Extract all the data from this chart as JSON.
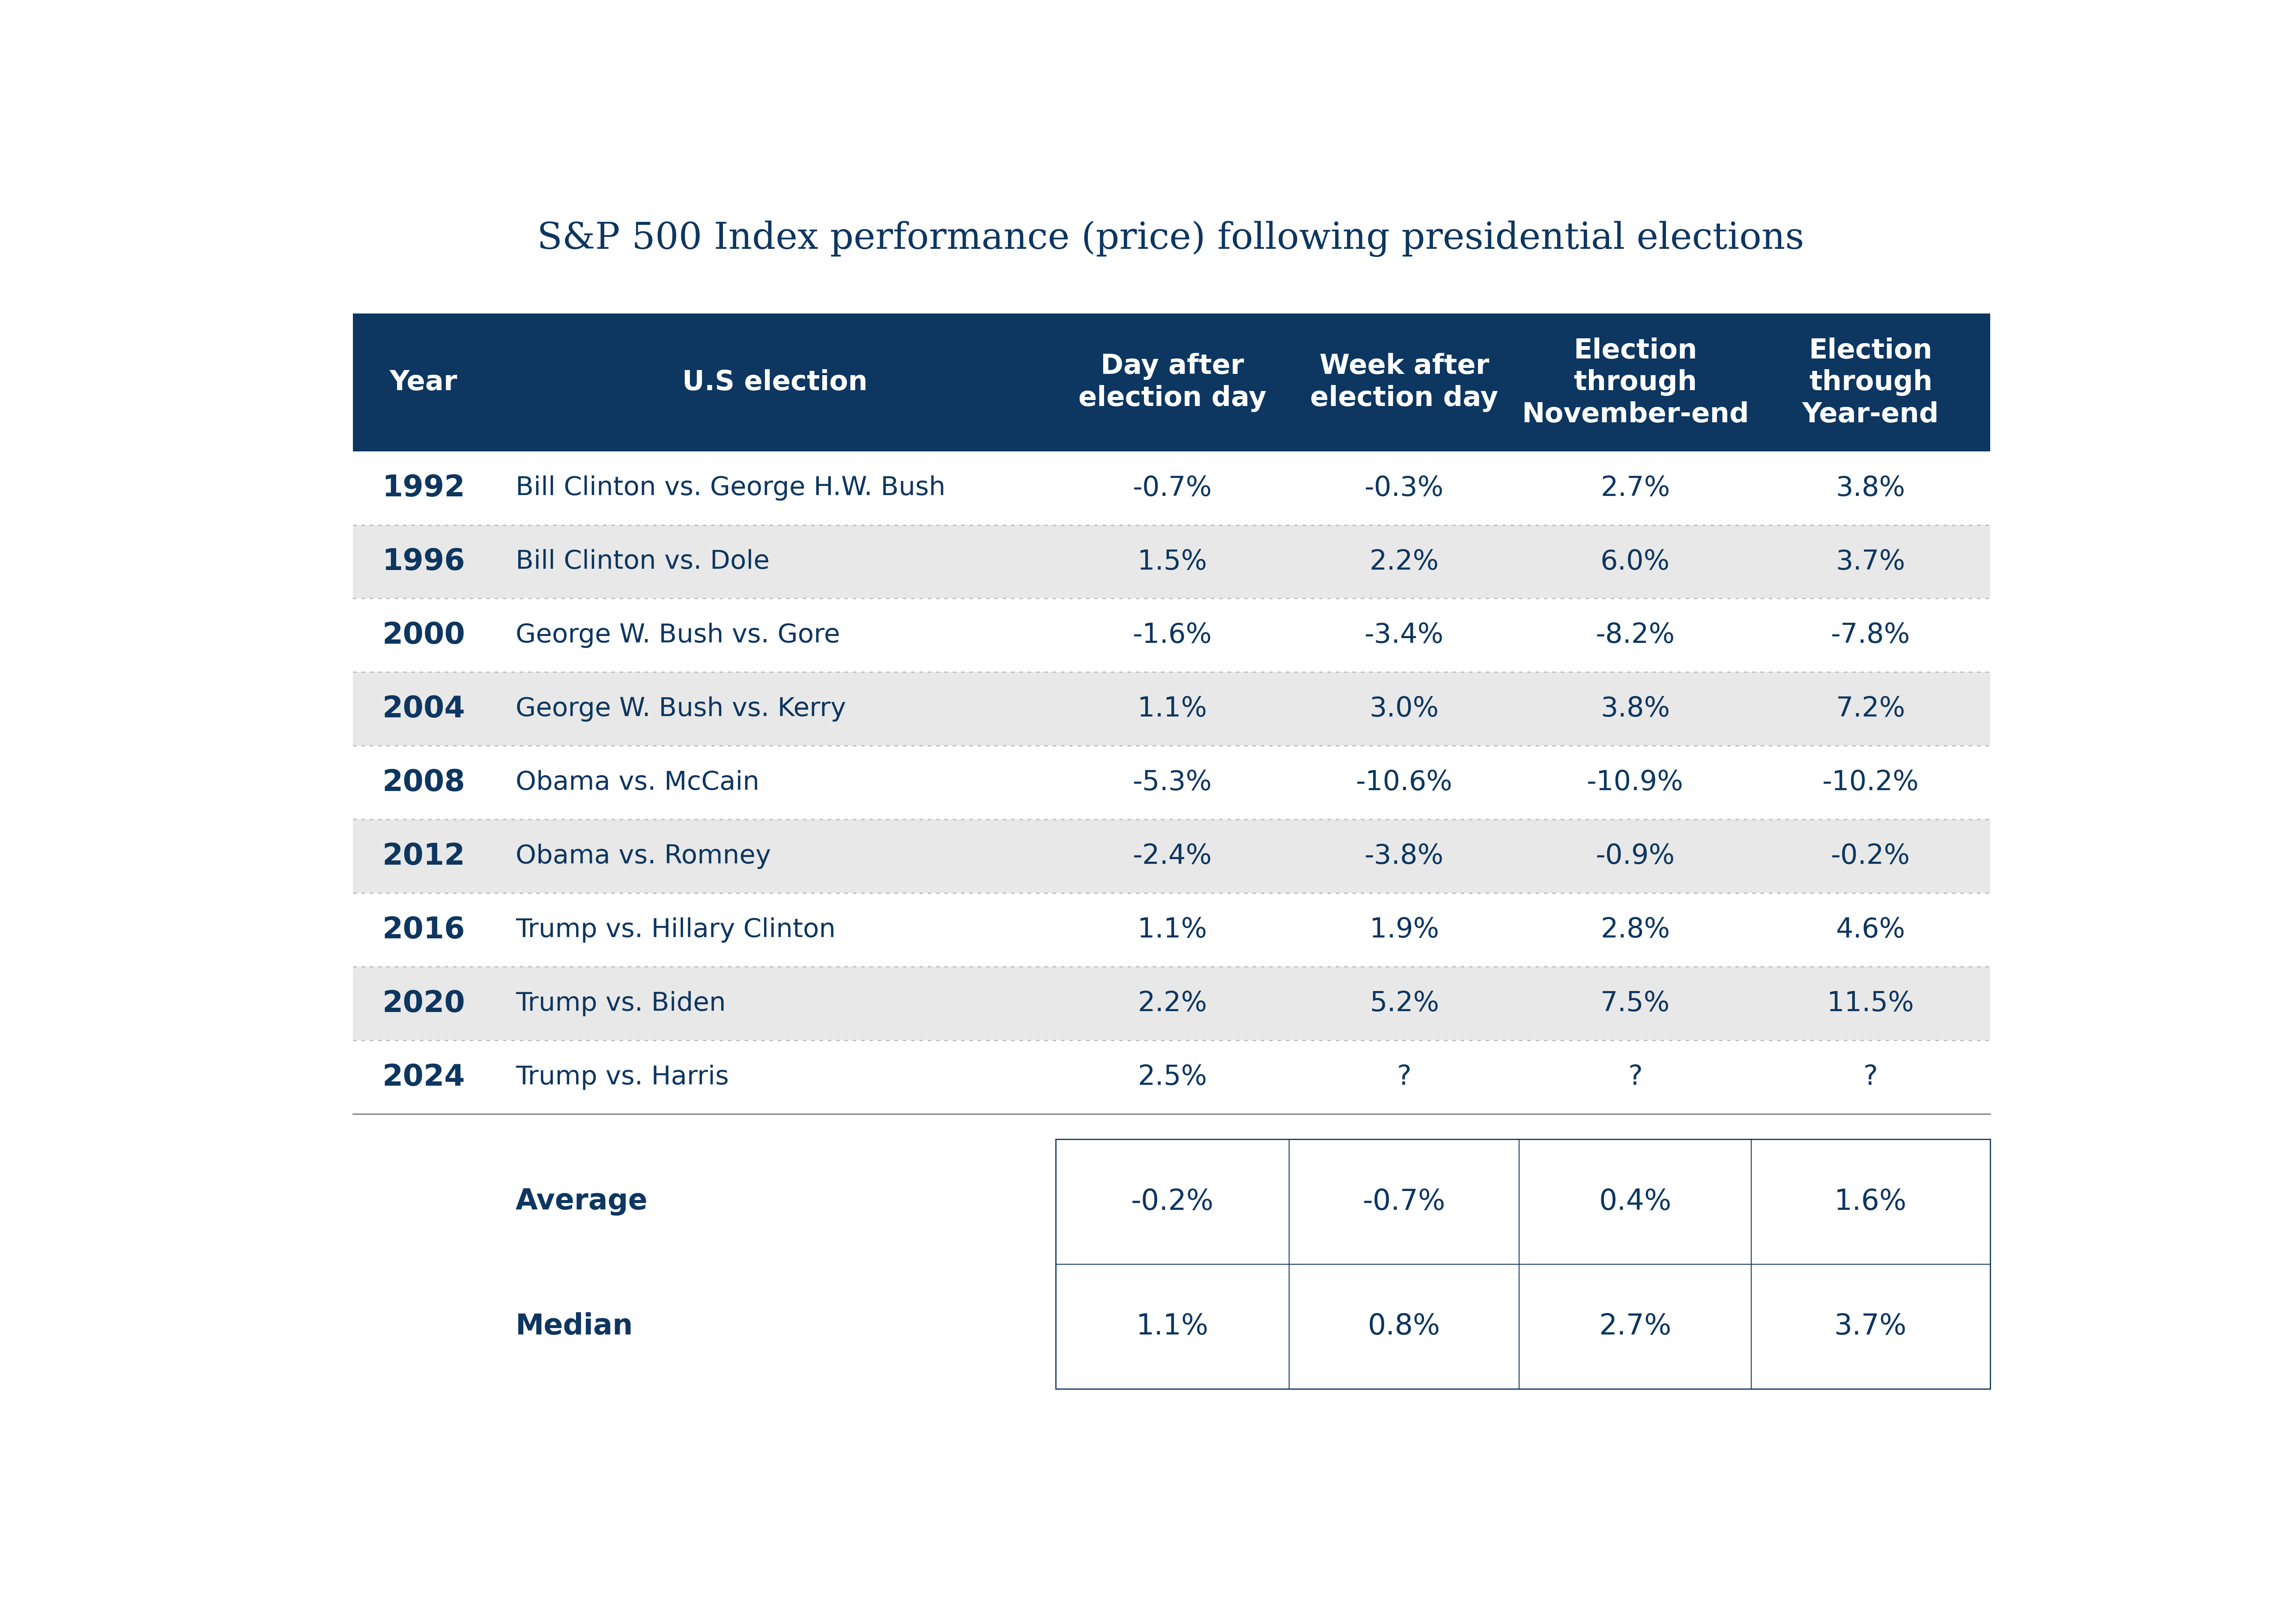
{
  "title": "S&P 500 Index performance (price) following presidential elections",
  "header_bg_color": "#0d3660",
  "header_text_color": "#ffffff",
  "col_headers": [
    "Year",
    "U.S election",
    "Day after\nelection day",
    "Week after\nelection day",
    "Election\nthrough\nNovember-end",
    "Election\nthrough\nYear-end"
  ],
  "rows": [
    {
      "year": "1992",
      "election": "Bill Clinton vs. George H.W. Bush",
      "day_after": "-0.7%",
      "week_after": "-0.3%",
      "nov_end": "2.7%",
      "year_end": "3.8%",
      "bg": "#ffffff"
    },
    {
      "year": "1996",
      "election": "Bill Clinton vs. Dole",
      "day_after": "1.5%",
      "week_after": "2.2%",
      "nov_end": "6.0%",
      "year_end": "3.7%",
      "bg": "#e8e8e8"
    },
    {
      "year": "2000",
      "election": "George W. Bush vs. Gore",
      "day_after": "-1.6%",
      "week_after": "-3.4%",
      "nov_end": "-8.2%",
      "year_end": "-7.8%",
      "bg": "#ffffff"
    },
    {
      "year": "2004",
      "election": "George W. Bush vs. Kerry",
      "day_after": "1.1%",
      "week_after": "3.0%",
      "nov_end": "3.8%",
      "year_end": "7.2%",
      "bg": "#e8e8e8"
    },
    {
      "year": "2008",
      "election": "Obama vs. McCain",
      "day_after": "-5.3%",
      "week_after": "-10.6%",
      "nov_end": "-10.9%",
      "year_end": "-10.2%",
      "bg": "#ffffff"
    },
    {
      "year": "2012",
      "election": "Obama vs. Romney",
      "day_after": "-2.4%",
      "week_after": "-3.8%",
      "nov_end": "-0.9%",
      "year_end": "-0.2%",
      "bg": "#e8e8e8"
    },
    {
      "year": "2016",
      "election": "Trump vs. Hillary Clinton",
      "day_after": "1.1%",
      "week_after": "1.9%",
      "nov_end": "2.8%",
      "year_end": "4.6%",
      "bg": "#ffffff"
    },
    {
      "year": "2020",
      "election": "Trump vs. Biden",
      "day_after": "2.2%",
      "week_after": "5.2%",
      "nov_end": "7.5%",
      "year_end": "11.5%",
      "bg": "#e8e8e8"
    },
    {
      "year": "2024",
      "election": "Trump vs. Harris",
      "day_after": "2.5%",
      "week_after": "?",
      "nov_end": "?",
      "year_end": "?",
      "bg": "#ffffff"
    }
  ],
  "average": [
    "-0.2%",
    "-0.7%",
    "0.4%",
    "1.6%"
  ],
  "median": [
    "1.1%",
    "0.8%",
    "2.7%",
    "3.7%"
  ],
  "title_color": "#0d3660",
  "data_text_color": "#0d3660",
  "summary_box_border": "#0d3660",
  "row_separator_color": "#bbbbbb",
  "bottom_border_color": "#777777"
}
